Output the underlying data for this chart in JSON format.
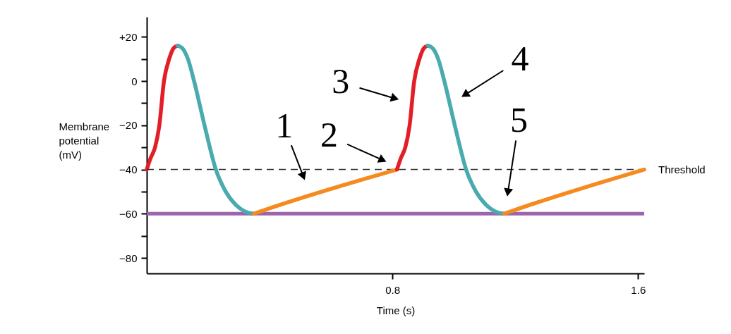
{
  "chart_data": {
    "type": "line",
    "xlabel": "Time (s)",
    "ylabel": "Membrane potential (mV)",
    "xlim": [
      0,
      1.62
    ],
    "ylim": [
      -87,
      29
    ],
    "xticks": [
      0.8,
      1.6
    ],
    "yticks": [
      {
        "value": -80,
        "label": "−80"
      },
      {
        "value": -70,
        "label": null
      },
      {
        "value": -60,
        "label": "−60"
      },
      {
        "value": -50,
        "label": null
      },
      {
        "value": -40,
        "label": "−40"
      },
      {
        "value": -30,
        "label": null
      },
      {
        "value": -20,
        "label": "−20"
      },
      {
        "value": -10,
        "label": null
      },
      0,
      {
        "value": 10,
        "label": null
      },
      {
        "value": 20,
        "label": "+20"
      }
    ],
    "grid": false,
    "line_style": "solid",
    "marker": "none",
    "series": [
      {
        "color": "#e41e26",
        "x": [
          0,
          0.012,
          0.027,
          0.041,
          0.056,
          0.073,
          0.088,
          0.1
        ],
        "values": [
          -40,
          -35,
          -30,
          -20,
          0,
          10,
          15,
          16
        ]
      },
      {
        "color": "#4aabaf",
        "x": [
          0.1,
          0.115,
          0.134,
          0.154,
          0.188,
          0.225,
          0.257,
          0.29,
          0.32,
          0.349
        ],
        "values": [
          16,
          15,
          10,
          0,
          -20,
          -40,
          -50,
          -56,
          -59,
          -60
        ]
      },
      {
        "color": "#f58a1f",
        "x": [
          0.349,
          0.38,
          0.815
        ],
        "values": [
          -60,
          -58.5,
          -40
        ]
      },
      {
        "color": "#e41e26",
        "x": [
          0.815,
          0.827,
          0.842,
          0.856,
          0.871,
          0.888,
          0.903,
          0.915
        ],
        "values": [
          -40,
          -35,
          -30,
          -20,
          0,
          10,
          15,
          16
        ]
      },
      {
        "color": "#4aabaf",
        "x": [
          0.915,
          0.93,
          0.949,
          0.969,
          1.003,
          1.04,
          1.072,
          1.105,
          1.135,
          1.164
        ],
        "values": [
          16,
          15,
          10,
          0,
          -20,
          -40,
          -50,
          -56,
          -59,
          -60
        ]
      },
      {
        "color": "#f58a1f",
        "x": [
          1.164,
          1.195,
          1.62
        ],
        "values": [
          -60,
          -58.5,
          -40
        ]
      }
    ],
    "ref_lines": [
      {
        "axis": "y",
        "value": -60,
        "color": "#9b66ad",
        "line_style": "solid"
      },
      {
        "axis": "y",
        "value": -40,
        "label": "Threshold",
        "color": "#333333",
        "line_style": "dashed"
      }
    ],
    "annotations": [
      "1",
      "2",
      "3",
      "4",
      "5"
    ]
  }
}
